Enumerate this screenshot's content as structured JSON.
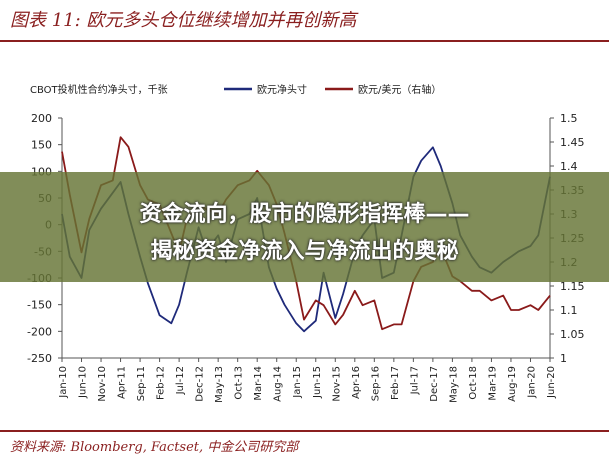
{
  "figure_title": "图表 11: 欧元多头仓位继续增加并再创新高",
  "source_note": "资料来源: Bloomberg, Factset, 中金公司研究部",
  "overlay": {
    "line1": "资金流向，股市的隐形指挥棒——",
    "line2": "揭秘资金净流入与净流出的奥秘"
  },
  "colors": {
    "series_left": "#1f2a7a",
    "series_right": "#8a1a1a",
    "brand": "#8a1f1f",
    "overlay": "#657434"
  },
  "chart_data": {
    "type": "line",
    "left_axis_label": "CBOT投机性合约净头寸，千张",
    "ylim_left": [
      -250,
      200
    ],
    "yticks_left": [
      "200",
      "150",
      "100",
      "50",
      "0",
      "-50",
      "-100",
      "-150",
      "-200",
      "-250"
    ],
    "ylim_right": [
      1.0,
      1.5
    ],
    "yticks_right": [
      "1.5",
      "1.45",
      "1.4",
      "1.35",
      "1.3",
      "1.25",
      "1.2",
      "1.15",
      "1.1",
      "1.05",
      "1"
    ],
    "x_tick_labels": [
      "Jan-10",
      "Jun-10",
      "Nov-10",
      "Apr-11",
      "Sep-11",
      "Feb-12",
      "Jul-12",
      "Dec-12",
      "May-13",
      "Oct-13",
      "Mar-14",
      "Aug-14",
      "Jan-15",
      "Jun-15",
      "Nov-15",
      "Apr-16",
      "Sep-16",
      "Feb-17",
      "Jul-17",
      "Dec-17",
      "May-18",
      "Oct-18",
      "Mar-19",
      "Aug-19",
      "Jan-20",
      "Jun-20"
    ],
    "legend_position": "top",
    "series": [
      {
        "name": "欧元净头寸",
        "axis": "left",
        "x": [
          "Jan-10",
          "Mar-10",
          "Jun-10",
          "Aug-10",
          "Nov-10",
          "Feb-11",
          "Apr-11",
          "Jun-11",
          "Sep-11",
          "Nov-11",
          "Feb-12",
          "May-12",
          "Jul-12",
          "Sep-12",
          "Dec-12",
          "Feb-13",
          "May-13",
          "Jul-13",
          "Oct-13",
          "Jan-14",
          "Mar-14",
          "Jun-14",
          "Aug-14",
          "Oct-14",
          "Jan-15",
          "Mar-15",
          "Jun-15",
          "Aug-15",
          "Nov-15",
          "Jan-16",
          "Apr-16",
          "Jun-16",
          "Sep-16",
          "Nov-16",
          "Feb-17",
          "Apr-17",
          "Jul-17",
          "Sep-17",
          "Dec-17",
          "Feb-18",
          "May-18",
          "Jul-18",
          "Oct-18",
          "Dec-18",
          "Mar-19",
          "Jun-19",
          "Aug-19",
          "Oct-19",
          "Jan-20",
          "Mar-20",
          "Jun-20"
        ],
        "values": [
          20,
          -60,
          -100,
          -10,
          30,
          60,
          80,
          20,
          -60,
          -110,
          -170,
          -185,
          -150,
          -90,
          -5,
          -50,
          -20,
          -70,
          10,
          20,
          50,
          -80,
          -120,
          -150,
          -185,
          -200,
          -180,
          -90,
          -175,
          -130,
          -50,
          -20,
          10,
          -100,
          -90,
          -20,
          90,
          120,
          145,
          110,
          40,
          -20,
          -60,
          -80,
          -90,
          -70,
          -60,
          -50,
          -40,
          -20,
          90
        ]
      },
      {
        "name": "欧元/美元（右轴）",
        "axis": "right",
        "x": [
          "Jan-10",
          "Mar-10",
          "Jun-10",
          "Aug-10",
          "Nov-10",
          "Feb-11",
          "Apr-11",
          "Jun-11",
          "Sep-11",
          "Nov-11",
          "Feb-12",
          "May-12",
          "Jul-12",
          "Sep-12",
          "Dec-12",
          "Feb-13",
          "May-13",
          "Jul-13",
          "Oct-13",
          "Jan-14",
          "Mar-14",
          "Jun-14",
          "Aug-14",
          "Oct-14",
          "Jan-15",
          "Mar-15",
          "Jun-15",
          "Aug-15",
          "Nov-15",
          "Jan-16",
          "Apr-16",
          "Jun-16",
          "Sep-16",
          "Nov-16",
          "Feb-17",
          "Apr-17",
          "Jul-17",
          "Sep-17",
          "Dec-17",
          "Feb-18",
          "May-18",
          "Jul-18",
          "Oct-18",
          "Dec-18",
          "Mar-19",
          "Jun-19",
          "Aug-19",
          "Oct-19",
          "Jan-20",
          "Mar-20",
          "Jun-20"
        ],
        "values": [
          1.43,
          1.34,
          1.22,
          1.29,
          1.36,
          1.37,
          1.46,
          1.44,
          1.36,
          1.33,
          1.32,
          1.26,
          1.22,
          1.29,
          1.32,
          1.31,
          1.3,
          1.33,
          1.36,
          1.37,
          1.39,
          1.36,
          1.32,
          1.26,
          1.16,
          1.08,
          1.12,
          1.11,
          1.07,
          1.09,
          1.14,
          1.11,
          1.12,
          1.06,
          1.07,
          1.07,
          1.16,
          1.19,
          1.2,
          1.23,
          1.17,
          1.16,
          1.14,
          1.14,
          1.12,
          1.13,
          1.1,
          1.1,
          1.11,
          1.1,
          1.13
        ]
      }
    ]
  }
}
